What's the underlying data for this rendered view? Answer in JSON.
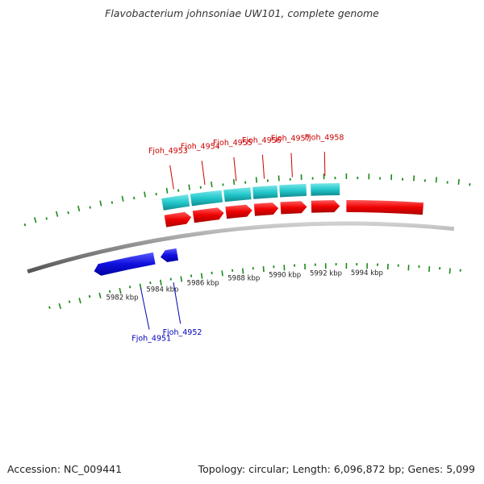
{
  "title": "Flavobacterium johnsoniae UW101, complete genome",
  "footer": {
    "accession": "Accession: NC_009441",
    "summary": "Topology: circular; Length: 6,096,872 bp; Genes: 5,099"
  },
  "colors": {
    "forward_cds": "#ee0000",
    "forward_gene": "#22c8cc",
    "reverse_cds": "#1010dd",
    "backbone": "#8a8a8a",
    "ticks": "#1a8a1a",
    "forward_label": "#cc0000",
    "reverse_label": "#0000bb"
  },
  "axis": {
    "unit": "kbp",
    "ticks": [
      {
        "kbp": 5982,
        "label": "5982 kbp"
      },
      {
        "kbp": 5984,
        "label": "5984 kbp"
      },
      {
        "kbp": 5986,
        "label": "5986 kbp"
      },
      {
        "kbp": 5988,
        "label": "5988 kbp"
      },
      {
        "kbp": 5990,
        "label": "5990 kbp"
      },
      {
        "kbp": 5992,
        "label": "5992 kbp"
      },
      {
        "kbp": 5994,
        "label": "5994 kbp"
      }
    ]
  },
  "genes_forward": [
    {
      "label": "Fjoh_4953",
      "start_kbp": 5984.7,
      "end_kbp": 5985.9
    },
    {
      "label": "Fjoh_4954",
      "start_kbp": 5986.0,
      "end_kbp": 5987.4
    },
    {
      "label": "Fjoh_4955",
      "start_kbp": 5987.5,
      "end_kbp": 5988.7
    },
    {
      "label": "Fjoh_4956",
      "start_kbp": 5988.8,
      "end_kbp": 5989.9
    },
    {
      "label": "Fjoh_4957",
      "start_kbp": 5990.0,
      "end_kbp": 5991.2
    },
    {
      "label": "Fjoh_4958",
      "start_kbp": 5991.4,
      "end_kbp": 5992.7
    }
  ],
  "genes_reverse": [
    {
      "label": "Fjoh_4951",
      "start_kbp": 5981.0,
      "end_kbp": 5983.9
    },
    {
      "label": "Fjoh_4952",
      "start_kbp": 5984.2,
      "end_kbp": 5985.0
    }
  ]
}
